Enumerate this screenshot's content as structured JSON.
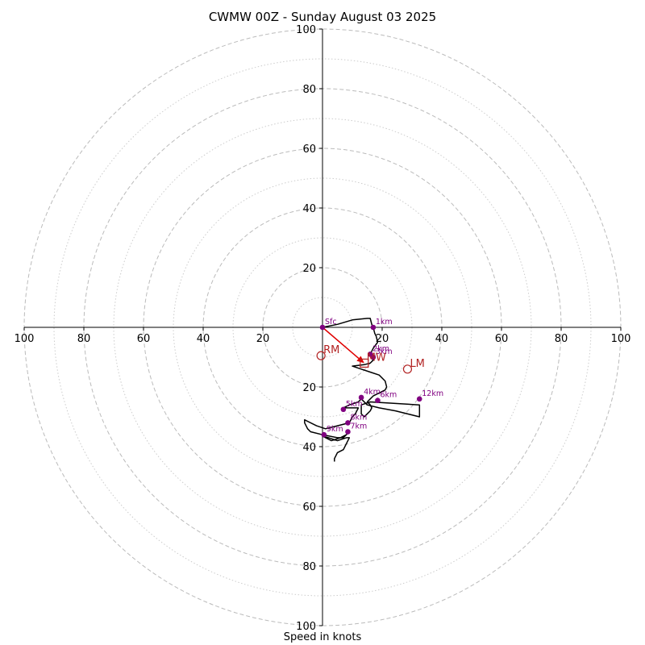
{
  "chart_data": {
    "type": "hodograph",
    "title": "CWMW 00Z - Sunday August 03 2025",
    "xlabel": "Speed in knots",
    "units": "knots",
    "range": [
      -100,
      100
    ],
    "ring_ticks": [
      20,
      40,
      60,
      80,
      100
    ],
    "ring_tick_labels": [
      "20",
      "40",
      "60",
      "80",
      "100"
    ],
    "minor_rings": [
      10,
      30,
      50,
      70,
      90
    ],
    "colors": {
      "profile": "#000000",
      "height_markers": "#800080",
      "storm_markers": "#b22222",
      "shear_arrow": "#e00000",
      "grid": "#bbbbbb"
    },
    "profile": [
      [
        0,
        0
      ],
      [
        5,
        1
      ],
      [
        10,
        2.5
      ],
      [
        15,
        3
      ],
      [
        16,
        3
      ],
      [
        16.5,
        1
      ],
      [
        17,
        0
      ],
      [
        17.5,
        -2
      ],
      [
        18,
        -3
      ],
      [
        18.5,
        -5
      ],
      [
        17,
        -7
      ],
      [
        16,
        -9
      ],
      [
        17,
        -11
      ],
      [
        16,
        -12
      ],
      [
        14,
        -12.5
      ],
      [
        10,
        -13
      ],
      [
        13,
        -14
      ],
      [
        16,
        -15
      ],
      [
        19,
        -16
      ],
      [
        21,
        -18
      ],
      [
        21.5,
        -20
      ],
      [
        21,
        -21
      ],
      [
        19,
        -22
      ],
      [
        17,
        -23
      ],
      [
        16,
        -24
      ],
      [
        15,
        -25
      ],
      [
        16,
        -26
      ],
      [
        16.5,
        -27
      ],
      [
        16,
        -28
      ],
      [
        15,
        -29
      ],
      [
        14,
        -30
      ],
      [
        13,
        -29
      ],
      [
        13,
        -27
      ],
      [
        13,
        -26
      ],
      [
        16,
        -25
      ],
      [
        32.5,
        -26
      ],
      [
        32.5,
        -30
      ],
      [
        24.5,
        -28
      ],
      [
        19,
        -27
      ],
      [
        15,
        -26
      ],
      [
        13,
        -24
      ],
      [
        12,
        -25
      ],
      [
        9,
        -26
      ],
      [
        7,
        -27
      ],
      [
        12,
        -27
      ],
      [
        11,
        -29
      ],
      [
        10,
        -30
      ],
      [
        9,
        -32
      ],
      [
        5,
        -33
      ],
      [
        1,
        -34
      ],
      [
        -2,
        -33
      ],
      [
        -6,
        -31
      ],
      [
        -6,
        -32
      ],
      [
        -5,
        -34
      ],
      [
        -4,
        -35
      ],
      [
        0,
        -36
      ],
      [
        5,
        -37
      ],
      [
        7,
        -37
      ],
      [
        9,
        -35
      ],
      [
        8,
        -36
      ],
      [
        6,
        -37
      ],
      [
        3,
        -38
      ],
      [
        0,
        -36.5
      ],
      [
        2,
        -37
      ],
      [
        5,
        -38
      ],
      [
        8,
        -37
      ],
      [
        9,
        -37
      ],
      [
        8,
        -39
      ],
      [
        7,
        -41
      ],
      [
        5,
        -42
      ],
      [
        4,
        -44
      ],
      [
        4,
        -45
      ]
    ],
    "height_markers": [
      {
        "label": "Sfc",
        "u": 0,
        "v": 0
      },
      {
        "label": "1km",
        "u": 17,
        "v": 0
      },
      {
        "label": "2km",
        "u": 16,
        "v": -9
      },
      {
        "label": "3km",
        "u": 17,
        "v": -10
      },
      {
        "label": "4km",
        "u": 13,
        "v": -23.5
      },
      {
        "label": "5km",
        "u": 7,
        "v": -27.5
      },
      {
        "label": "6km",
        "u": 18.5,
        "v": -24.5
      },
      {
        "label": "7km",
        "u": 8.5,
        "v": -35
      },
      {
        "label": "8km",
        "u": 8.5,
        "v": -32
      },
      {
        "label": "9km",
        "u": 0.5,
        "v": -36
      },
      {
        "label": "12km",
        "u": 32.5,
        "v": -24
      }
    ],
    "storm_markers": [
      {
        "label": "RM",
        "u": -0.5,
        "v": -9.5,
        "shape": "circle"
      },
      {
        "label": "MW",
        "u": 14,
        "v": -12,
        "shape": "square"
      },
      {
        "label": "LM",
        "u": 28.5,
        "v": -14,
        "shape": "circle"
      }
    ],
    "shear_vector": {
      "from": [
        0,
        0
      ],
      "to": [
        14,
        -12
      ]
    }
  }
}
